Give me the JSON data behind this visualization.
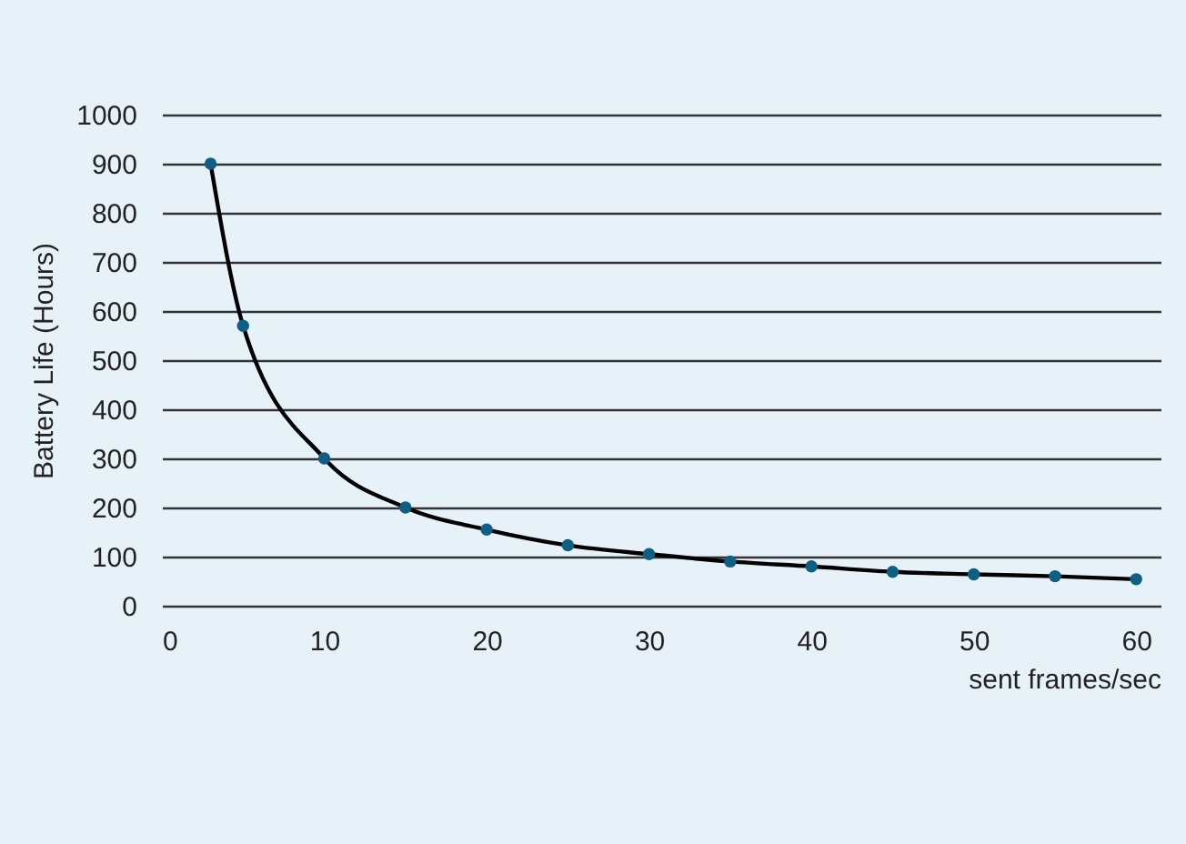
{
  "chart_data": {
    "type": "line",
    "xlabel": "sent frames/sec",
    "ylabel": "Battery Life (Hours)",
    "x": [
      3,
      5,
      10,
      15,
      20,
      25,
      30,
      35,
      40,
      45,
      50,
      55,
      60
    ],
    "series": [
      {
        "color": "#0f5f85",
        "values": [
          900,
          570,
          300,
          200,
          155,
          123,
          105,
          90,
          80,
          69,
          64,
          60,
          54
        ]
      }
    ],
    "xlim": [
      0,
      61.5
    ],
    "xticks": [
      0,
      10,
      20,
      30,
      40,
      50,
      60
    ],
    "ylim": [
      0,
      1000
    ],
    "yticks": [
      0,
      100,
      200,
      300,
      400,
      500,
      600,
      700,
      800,
      900,
      1000
    ],
    "grid": "y",
    "marker": "circle",
    "line_style": "solid"
  }
}
